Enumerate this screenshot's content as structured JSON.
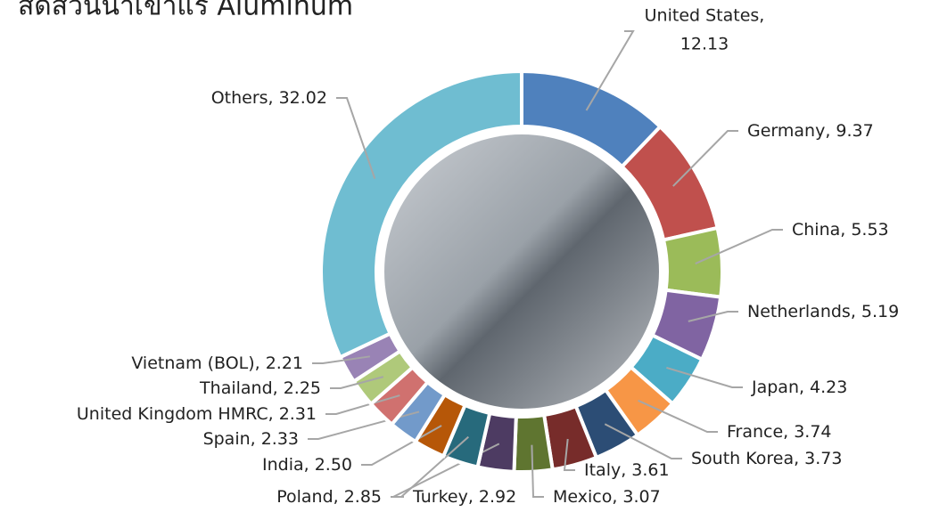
{
  "chart_data": {
    "type": "donut",
    "title": "สัดส่วนนำเข้าแร่ Aluminum",
    "categories": [
      "United States,",
      "Germany,",
      "China,",
      "Netherlands,",
      "Japan,",
      "France,",
      "South Korea,",
      "Italy,",
      "Mexico,",
      "Turkey,",
      "Poland,",
      "India,",
      "Spain,",
      "United Kingdom HMRC,",
      "Thailand,",
      "Vietnam (BOL),",
      "Others,"
    ],
    "values": [
      12.13,
      9.37,
      5.53,
      5.19,
      4.23,
      3.74,
      3.73,
      3.61,
      3.07,
      2.92,
      2.85,
      2.5,
      2.33,
      2.31,
      2.25,
      2.21,
      32.02
    ],
    "value_labels": [
      "12.13",
      "9.37",
      "5.53",
      "5.19",
      "4.23",
      "3.74",
      "3.73",
      "3.61",
      "3.07",
      "2.92",
      "2.85",
      "2.50",
      "2.33",
      "2.31",
      "2.25",
      "2.21",
      "32.02"
    ],
    "colors": [
      "#4f81bd",
      "#c0504d",
      "#9bbb59",
      "#8064a2",
      "#4bacc6",
      "#f79646",
      "#2c4d75",
      "#772c2a",
      "#5f7530",
      "#4d3b62",
      "#276a7c",
      "#b65708",
      "#729aca",
      "#d0716f",
      "#afc97a",
      "#9983b5",
      "#6fbdd1"
    ]
  }
}
